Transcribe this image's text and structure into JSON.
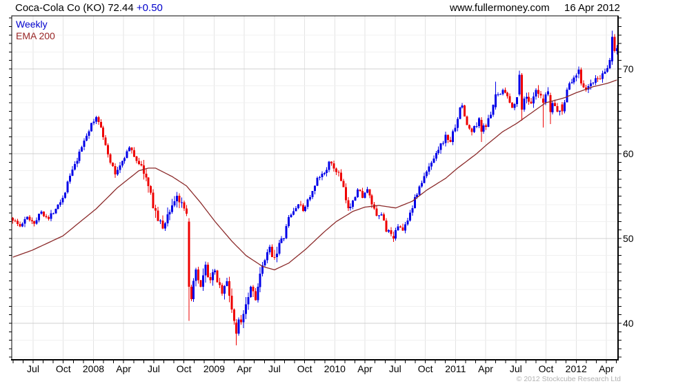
{
  "header": {
    "symbol_price": "Coca-Cola Co (KO) 72.44",
    "change": "+0.50",
    "site": "www.fullermoney.com",
    "date": "16 Apr 2012"
  },
  "legend": {
    "series_label": "Weekly",
    "overlay_label": "EMA 200"
  },
  "footer": {
    "copyright": "© 2012 Stockcube Research Ltd"
  },
  "chart_data": {
    "type": "candlestick",
    "title": "Coca-Cola Co (KO) weekly candlestick chart with 200-week EMA, mid-2007 to 16 Apr 2012",
    "last_price": 72.44,
    "change": "+0.50",
    "n_weeks": 255,
    "x_axis": {
      "tick_labels": [
        "Jul",
        "Oct",
        "2008",
        "Apr",
        "Jul",
        "Oct",
        "2009",
        "Apr",
        "Jul",
        "Oct",
        "2010",
        "Apr",
        "Jul",
        "Oct",
        "2011",
        "Apr",
        "Jul",
        "Oct",
        "2012",
        "Apr"
      ],
      "minor_ticks": "monthly"
    },
    "y_axis": {
      "tick_labels": [
        40,
        50,
        60,
        70
      ],
      "range": [
        35.7,
        76.3
      ],
      "gridline_step": 2,
      "minor_tick_step": 1
    },
    "grid": {
      "vertical": "#e3e3e3",
      "major": "#d0d0d0",
      "minor": "#f0f0f0"
    },
    "series": [
      {
        "name": "Weekly",
        "kind": "candlestick",
        "color_up": "#0000e8",
        "color_down": "#ee0000",
        "close_anchors": [
          [
            0,
            52.3
          ],
          [
            3,
            51.4
          ],
          [
            6,
            52.5
          ],
          [
            9,
            51.9
          ],
          [
            12,
            53.2
          ],
          [
            15,
            52.3
          ],
          [
            18,
            53.7
          ],
          [
            21,
            54.8
          ],
          [
            24,
            57.4
          ],
          [
            27,
            59.2
          ],
          [
            30,
            61.6
          ],
          [
            33,
            63.4
          ],
          [
            35,
            64.2
          ],
          [
            37,
            63.3
          ],
          [
            40,
            59.8
          ],
          [
            43,
            57.6
          ],
          [
            46,
            59.2
          ],
          [
            49,
            60.7
          ],
          [
            52,
            59.3
          ],
          [
            55,
            58.0
          ],
          [
            58,
            55.0
          ],
          [
            61,
            52.2
          ],
          [
            63,
            51.3
          ],
          [
            66,
            53.4
          ],
          [
            69,
            55.0
          ],
          [
            71,
            53.8
          ],
          [
            73,
            52.6
          ],
          [
            75,
            43.3
          ],
          [
            77,
            45.9
          ],
          [
            79,
            44.0
          ],
          [
            81,
            46.5
          ],
          [
            83,
            45.1
          ],
          [
            85,
            46.0
          ],
          [
            88,
            43.7
          ],
          [
            90,
            44.8
          ],
          [
            92,
            41.8
          ],
          [
            93,
            40.3
          ],
          [
            96,
            40.4
          ],
          [
            98,
            42.5
          ],
          [
            100,
            44.4
          ],
          [
            102,
            43.2
          ],
          [
            104,
            45.5
          ],
          [
            106,
            47.4
          ],
          [
            108,
            48.7
          ],
          [
            110,
            47.9
          ],
          [
            112,
            49.3
          ],
          [
            114,
            50.2
          ],
          [
            116,
            52.4
          ],
          [
            118,
            53.2
          ],
          [
            120,
            54.1
          ],
          [
            122,
            53.3
          ],
          [
            124,
            54.5
          ],
          [
            126,
            55.4
          ],
          [
            128,
            56.9
          ],
          [
            131,
            57.8
          ],
          [
            133,
            58.9
          ],
          [
            135,
            58.3
          ],
          [
            137,
            57.6
          ],
          [
            139,
            55.8
          ],
          [
            141,
            53.3
          ],
          [
            143,
            54.7
          ],
          [
            145,
            55.7
          ],
          [
            147,
            55.1
          ],
          [
            149,
            55.6
          ],
          [
            151,
            54.1
          ],
          [
            153,
            52.4
          ],
          [
            155,
            52.9
          ],
          [
            157,
            51.1
          ],
          [
            159,
            50.3
          ],
          [
            162,
            51.7
          ],
          [
            164,
            50.8
          ],
          [
            166,
            52.4
          ],
          [
            168,
            53.8
          ],
          [
            170,
            55.4
          ],
          [
            172,
            56.6
          ],
          [
            174,
            57.8
          ],
          [
            176,
            59.0
          ],
          [
            178,
            60.3
          ],
          [
            180,
            61.0
          ],
          [
            182,
            62.0
          ],
          [
            184,
            61.5
          ],
          [
            186,
            63.3
          ],
          [
            188,
            65.2
          ],
          [
            189,
            65.7
          ],
          [
            191,
            63.3
          ],
          [
            193,
            62.6
          ],
          [
            195,
            63.5
          ],
          [
            196,
            64.0
          ],
          [
            199,
            63.3
          ],
          [
            201,
            64.6
          ],
          [
            202,
            65.5
          ],
          [
            204,
            66.9
          ],
          [
            206,
            67.7
          ],
          [
            208,
            66.7
          ],
          [
            210,
            65.3
          ],
          [
            212,
            66.9
          ],
          [
            216,
            66.8
          ],
          [
            218,
            65.7
          ],
          [
            220,
            67.3
          ],
          [
            222,
            66.5
          ],
          [
            225,
            67.0
          ],
          [
            227,
            66.0
          ],
          [
            229,
            65.2
          ],
          [
            231,
            65.0
          ],
          [
            233,
            67.7
          ],
          [
            235,
            68.5
          ],
          [
            237,
            69.4
          ],
          [
            239,
            68.5
          ],
          [
            241,
            67.4
          ],
          [
            243,
            68.3
          ],
          [
            245,
            68.7
          ],
          [
            247,
            69.0
          ],
          [
            249,
            69.4
          ],
          [
            251,
            70.9
          ]
        ],
        "ohlc_overrides": {
          "74": [
            52.0,
            52.4,
            40.3,
            44.3
          ],
          "94": [
            40.1,
            40.5,
            37.4,
            38.8
          ],
          "160": [
            50.3,
            50.8,
            49.6,
            50.0
          ],
          "197": [
            64.0,
            64.3,
            61.4,
            62.6
          ],
          "203": [
            65.5,
            68.5,
            65.2,
            67.0
          ],
          "213": [
            67.0,
            69.8,
            66.8,
            69.3
          ],
          "214": [
            69.3,
            69.5,
            63.9,
            65.2
          ],
          "223": [
            66.5,
            67.0,
            63.1,
            66.0
          ],
          "226": [
            66.9,
            67.2,
            63.5,
            64.9
          ],
          "231": [
            65.8,
            66.1,
            64.6,
            65.0
          ],
          "238": [
            69.4,
            70.3,
            68.9,
            69.9
          ],
          "252": [
            70.9,
            74.5,
            70.5,
            73.8
          ],
          "253": [
            73.8,
            74.1,
            71.9,
            72.1
          ],
          "254": [
            72.1,
            72.8,
            71.7,
            72.44
          ]
        }
      },
      {
        "name": "EMA 200",
        "kind": "line",
        "color": "#8b2a2a",
        "anchors": [
          [
            0,
            47.8
          ],
          [
            8,
            48.6
          ],
          [
            21,
            50.3
          ],
          [
            35,
            53.5
          ],
          [
            44,
            56.0
          ],
          [
            53,
            58.0
          ],
          [
            57,
            58.3
          ],
          [
            60,
            58.3
          ],
          [
            67,
            57.3
          ],
          [
            73,
            56.2
          ],
          [
            79,
            54.2
          ],
          [
            85,
            52.0
          ],
          [
            92,
            49.7
          ],
          [
            98,
            48.0
          ],
          [
            105,
            46.7
          ],
          [
            110,
            46.3
          ],
          [
            116,
            47.1
          ],
          [
            123,
            48.7
          ],
          [
            131,
            50.8
          ],
          [
            136,
            52.0
          ],
          [
            143,
            53.2
          ],
          [
            148,
            53.7
          ],
          [
            154,
            53.9
          ],
          [
            161,
            53.6
          ],
          [
            168,
            54.4
          ],
          [
            174,
            55.7
          ],
          [
            182,
            57.1
          ],
          [
            187,
            58.3
          ],
          [
            195,
            60.0
          ],
          [
            199,
            61.0
          ],
          [
            206,
            62.6
          ],
          [
            212,
            63.6
          ],
          [
            218,
            64.8
          ],
          [
            224,
            66.0
          ],
          [
            232,
            66.6
          ],
          [
            237,
            67.2
          ],
          [
            244,
            67.9
          ],
          [
            250,
            68.3
          ],
          [
            254,
            68.7
          ]
        ]
      }
    ]
  }
}
